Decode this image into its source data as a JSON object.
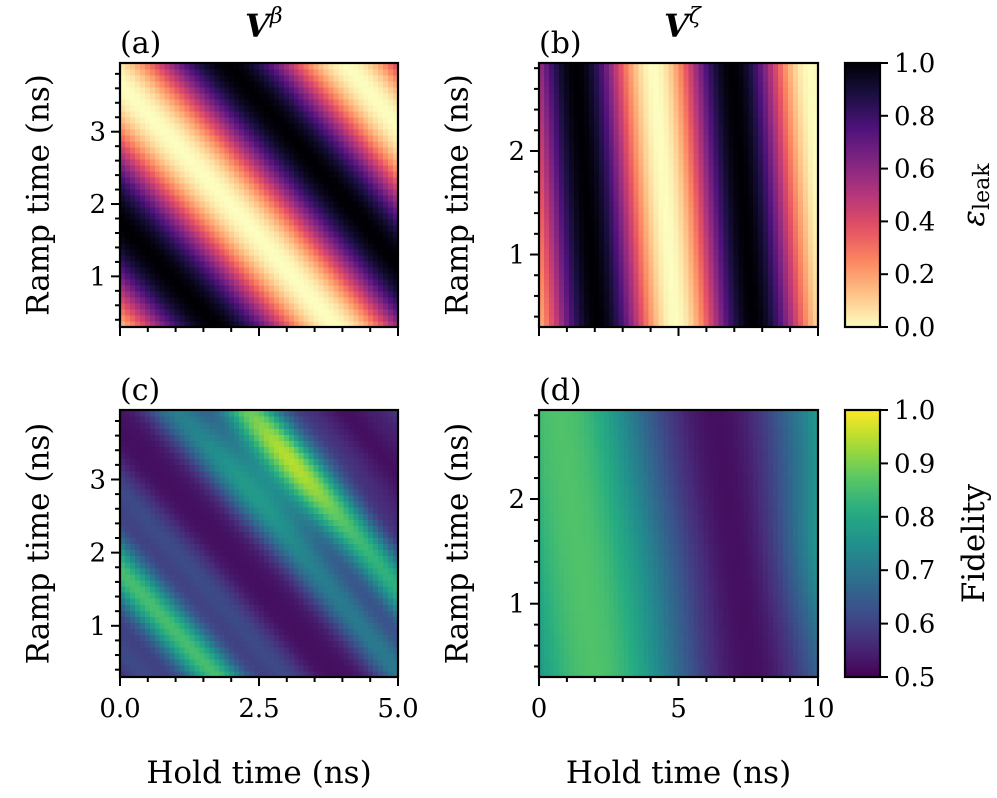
{
  "chart_data": [
    {
      "type": "heatmap",
      "panel_label": "(a)",
      "title_symbol": "V",
      "title_superscript": "β",
      "metric": "leak",
      "xlim": [
        0,
        5
      ],
      "ylim": [
        0.3,
        3.95
      ],
      "x_ticks": [
        0,
        2.5,
        5
      ],
      "x_ticklabels": [
        "0.0",
        "2.5",
        "5.0"
      ],
      "y_ticks": [
        1,
        2,
        3
      ],
      "y_ticklabels": [
        "1",
        "2",
        "3"
      ],
      "ylabel": "Ramp time (ns)",
      "xlabel": "",
      "xtick_labels_shown": false,
      "pattern": {
        "kx": 1.35,
        "ky": 1.65,
        "kx2": 0.02,
        "phase": -2.9
      }
    },
    {
      "type": "heatmap",
      "panel_label": "(b)",
      "title_symbol": "V",
      "title_superscript": "ζ",
      "metric": "leak",
      "xlim": [
        0,
        10
      ],
      "ylim": [
        0.3,
        2.85
      ],
      "x_ticks": [
        0,
        5,
        10
      ],
      "x_ticklabels": [
        "0",
        "5",
        "10"
      ],
      "y_ticks": [
        1,
        2
      ],
      "y_ticklabels": [
        "1",
        "2"
      ],
      "ylabel": "Ramp time (ns)",
      "xlabel": "",
      "xtick_labels_shown": false,
      "pattern": {
        "kx": 1.12,
        "ky": 0.35,
        "kx2": 0.0,
        "phase": -2.45
      }
    },
    {
      "type": "heatmap",
      "panel_label": "(c)",
      "metric": "fidelity",
      "xlim": [
        0,
        5
      ],
      "ylim": [
        0.3,
        3.95
      ],
      "x_ticks": [
        0,
        2.5,
        5
      ],
      "x_ticklabels": [
        "0.0",
        "2.5",
        "5.0"
      ],
      "y_ticks": [
        1,
        2,
        3
      ],
      "y_ticklabels": [
        "1",
        "2",
        "3"
      ],
      "ylabel": "Ramp time (ns)",
      "xlabel": "Hold time (ns)",
      "xtick_labels_shown": true,
      "pattern": {
        "kx": 1.35,
        "ky": 1.65,
        "kx2": 0.02,
        "phase": -2.9,
        "fast": 2.7,
        "peak": [
          3.0,
          3.2
        ]
      }
    },
    {
      "type": "heatmap",
      "panel_label": "(d)",
      "metric": "fidelity",
      "xlim": [
        0,
        10
      ],
      "ylim": [
        0.3,
        2.85
      ],
      "x_ticks": [
        0,
        5,
        10
      ],
      "x_ticklabels": [
        "0",
        "5",
        "10"
      ],
      "y_ticks": [
        1,
        2
      ],
      "y_ticklabels": [
        "1",
        "2"
      ],
      "ylabel": "Ramp time (ns)",
      "xlabel": "Hold time (ns)",
      "xtick_labels_shown": true,
      "pattern": {
        "kx": 0.56,
        "ky": 0.28,
        "kx2": 0.0,
        "phase": -1.2,
        "peak": [
          8.2,
          1.4
        ]
      }
    }
  ],
  "colorbars": [
    {
      "name": "leak",
      "label": "ε",
      "label_subscript": "leak",
      "colormap": "magma_r",
      "range": [
        0.0,
        1.0
      ],
      "ticks": [
        0.0,
        0.2,
        0.4,
        0.6,
        0.8,
        1.0
      ],
      "ticklabels": [
        "0.0",
        "0.2",
        "0.4",
        "0.6",
        "0.8",
        "1.0"
      ]
    },
    {
      "name": "fidelity",
      "label": "Fidelity",
      "colormap": "viridis",
      "range": [
        0.5,
        1.0
      ],
      "ticks": [
        0.5,
        0.6,
        0.7,
        0.8,
        0.9,
        1.0
      ],
      "ticklabels": [
        "0.5",
        "0.6",
        "0.7",
        "0.8",
        "0.9",
        "1.0"
      ]
    }
  ]
}
